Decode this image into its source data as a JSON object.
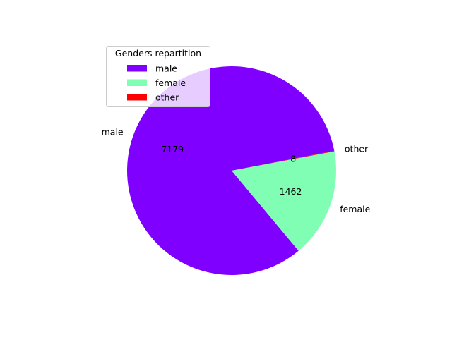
{
  "chart_data": {
    "type": "pie",
    "categories": [
      "male",
      "female",
      "other"
    ],
    "values": [
      7179,
      1462,
      8
    ],
    "colors": [
      "#8000ff",
      "#80ffb4",
      "#ff0000"
    ],
    "legend": {
      "title": "Genders repartition",
      "placement": "top-left",
      "entries": [
        "male",
        "female",
        "other"
      ]
    }
  }
}
